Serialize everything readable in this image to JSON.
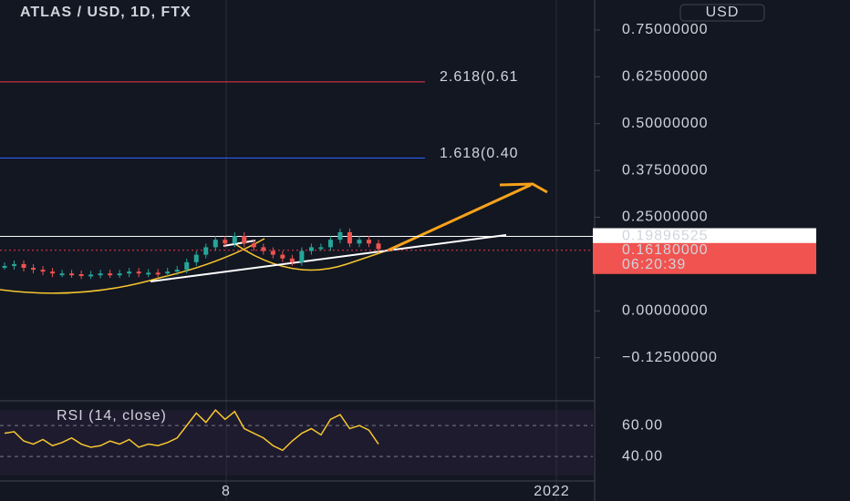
{
  "chart_data": {
    "type": "candlestick",
    "title": "ATLAS / USD, 1D, FTX",
    "currency": "USD",
    "values": [
      0.12,
      0.125,
      0.115,
      0.11,
      0.105,
      0.1,
      0.1,
      0.098,
      0.095,
      0.097,
      0.1,
      0.098,
      0.1,
      0.105,
      0.1,
      0.102,
      0.1,
      0.105,
      0.11,
      0.13,
      0.15,
      0.17,
      0.19,
      0.18,
      0.2,
      0.18,
      0.17,
      0.16,
      0.15,
      0.14,
      0.13,
      0.16,
      0.17,
      0.17,
      0.19,
      0.21,
      0.18,
      0.19,
      0.18,
      0.165
    ],
    "ylim": [
      -0.24,
      0.83
    ],
    "yticks": [
      {
        "value": 0.75,
        "label": "0.75000000"
      },
      {
        "value": 0.625,
        "label": "0.62500000"
      },
      {
        "value": 0.5,
        "label": "0.50000000"
      },
      {
        "value": 0.375,
        "label": "0.37500000"
      },
      {
        "value": 0.25,
        "label": "0.25000000"
      },
      {
        "value": 0,
        "label": "0.00000000"
      },
      {
        "value": -0.125,
        "label": "−0.12500000"
      }
    ],
    "fib_levels": [
      {
        "value": 0.6115,
        "label": "2.618(0.61",
        "color": "#f23645"
      },
      {
        "value": 0.408,
        "label": "1.618(0.40",
        "color": "#2962ff"
      }
    ],
    "last_high": {
      "value": 0.19896525,
      "label": "0.19896525"
    },
    "last_price": {
      "value": 0.1618,
      "label": "0.16180000"
    },
    "countdown": "06:20:39",
    "x_labels": [
      "8",
      "2022"
    ],
    "rsi": {
      "title": "RSI (14, close)",
      "color": "#f7c62f",
      "values": [
        55,
        56,
        50,
        48,
        51,
        47,
        49,
        52,
        48,
        46,
        47,
        50,
        48,
        51,
        46,
        48,
        47,
        49,
        52,
        60,
        68,
        62,
        70,
        64,
        69,
        58,
        55,
        52,
        47,
        44,
        50,
        55,
        58,
        54,
        64,
        67,
        58,
        60,
        57,
        48
      ],
      "ylim": [
        26,
        73
      ],
      "yticks": [
        {
          "value": 60,
          "label": "60.00"
        },
        {
          "value": 40,
          "label": "40.00"
        }
      ]
    }
  }
}
